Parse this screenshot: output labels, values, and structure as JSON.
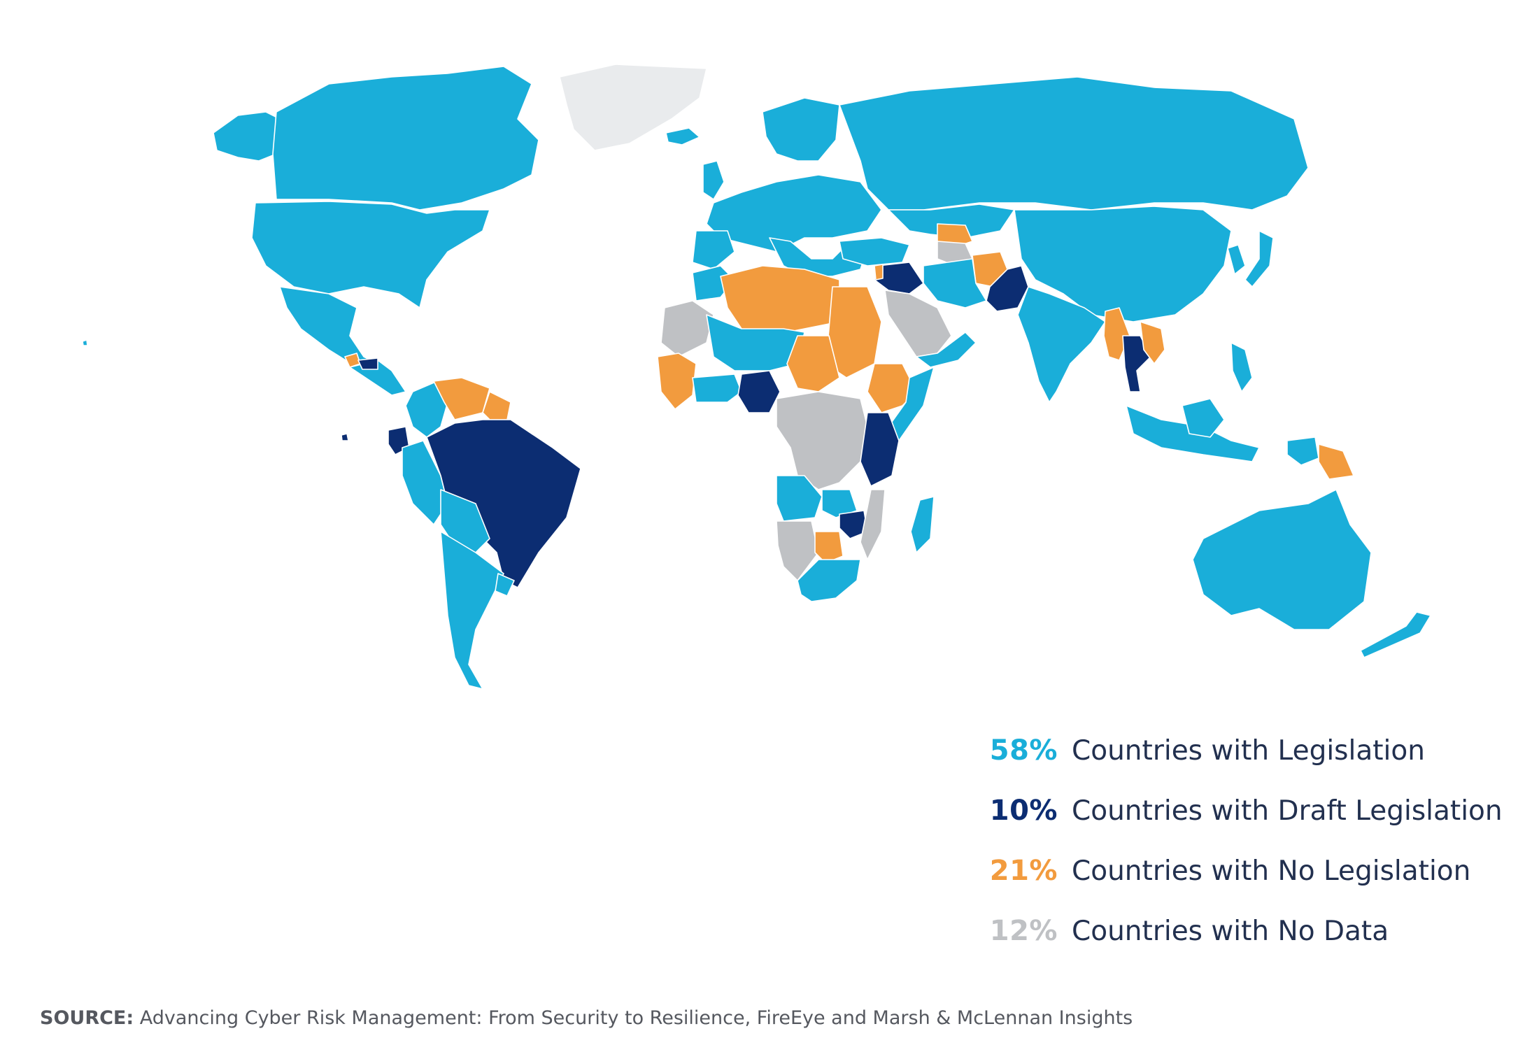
{
  "colors": {
    "legislation": "#1aaed9",
    "draft": "#0c2d72",
    "none": "#f29b3e",
    "nodata": "#bfc1c4",
    "greenland": "#e9ebed",
    "label_text": "#22304f",
    "source_text": "#55585f"
  },
  "legend": [
    {
      "key": "legislation",
      "percent": "58%",
      "label": "Countries with Legislation",
      "value": 58
    },
    {
      "key": "draft",
      "percent": "10%",
      "label": "Countries with Draft Legislation",
      "value": 10
    },
    {
      "key": "none",
      "percent": "21%",
      "label": "Countries with No Legislation",
      "value": 21
    },
    {
      "key": "nodata",
      "percent": "12%",
      "label": "Countries with No Data",
      "value": 12
    }
  ],
  "source": {
    "prefix": "SOURCE:",
    "text": "Advancing Cyber Risk Management: From Security to Resilience, FireEye and Marsh & McLennan Insights"
  }
}
